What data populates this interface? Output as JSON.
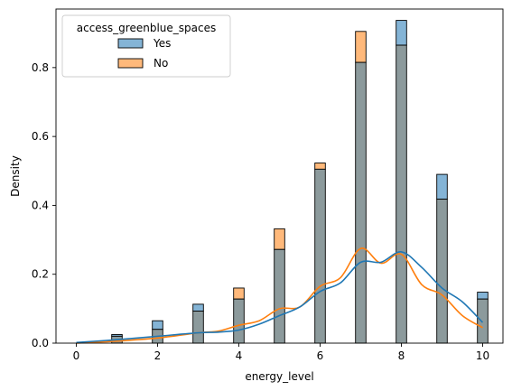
{
  "chart_data": {
    "type": "bar",
    "xlabel": "energy_level",
    "ylabel": "Density",
    "xlim": [
      -0.5,
      10.5
    ],
    "ylim": [
      0,
      0.97
    ],
    "xticks": [
      "0",
      "2",
      "4",
      "6",
      "8",
      "10"
    ],
    "yticks": [
      "0.0",
      "0.2",
      "0.4",
      "0.6",
      "0.8"
    ],
    "legend": {
      "title": "access_greenblue_spaces",
      "placement": "top-left",
      "entries": [
        "Yes",
        "No"
      ]
    },
    "colors": {
      "Yes": "#1f77b4",
      "No": "#ff7f0e",
      "overlap": "#8c9a9c"
    },
    "categories": [
      1,
      2,
      3,
      4,
      5,
      6,
      7,
      8,
      9,
      10
    ],
    "series": [
      {
        "name": "Yes",
        "values": [
          0.025,
          0.065,
          0.113,
          0.128,
          0.272,
          0.505,
          0.815,
          0.937,
          0.49,
          0.148
        ],
        "kde_x": [
          0,
          1,
          2,
          3,
          3.5,
          4,
          4.5,
          5,
          5.5,
          6,
          6.5,
          7,
          7.5,
          8,
          8.5,
          9,
          9.5,
          10
        ],
        "kde_y": [
          0.002,
          0.01,
          0.02,
          0.03,
          0.032,
          0.038,
          0.055,
          0.08,
          0.105,
          0.15,
          0.175,
          0.235,
          0.235,
          0.265,
          0.22,
          0.16,
          0.12,
          0.06
        ]
      },
      {
        "name": "No",
        "values": [
          0.02,
          0.04,
          0.093,
          0.16,
          0.332,
          0.523,
          0.905,
          0.865,
          0.418,
          0.128
        ],
        "kde_x": [
          0,
          1,
          2,
          3,
          3.5,
          4,
          4.5,
          5,
          5.5,
          6,
          6.5,
          7,
          7.5,
          8,
          8.5,
          9,
          9.5,
          10
        ],
        "kde_y": [
          0.0,
          0.006,
          0.015,
          0.03,
          0.035,
          0.052,
          0.065,
          0.1,
          0.105,
          0.165,
          0.19,
          0.275,
          0.232,
          0.258,
          0.17,
          0.14,
          0.08,
          0.045
        ]
      }
    ]
  }
}
